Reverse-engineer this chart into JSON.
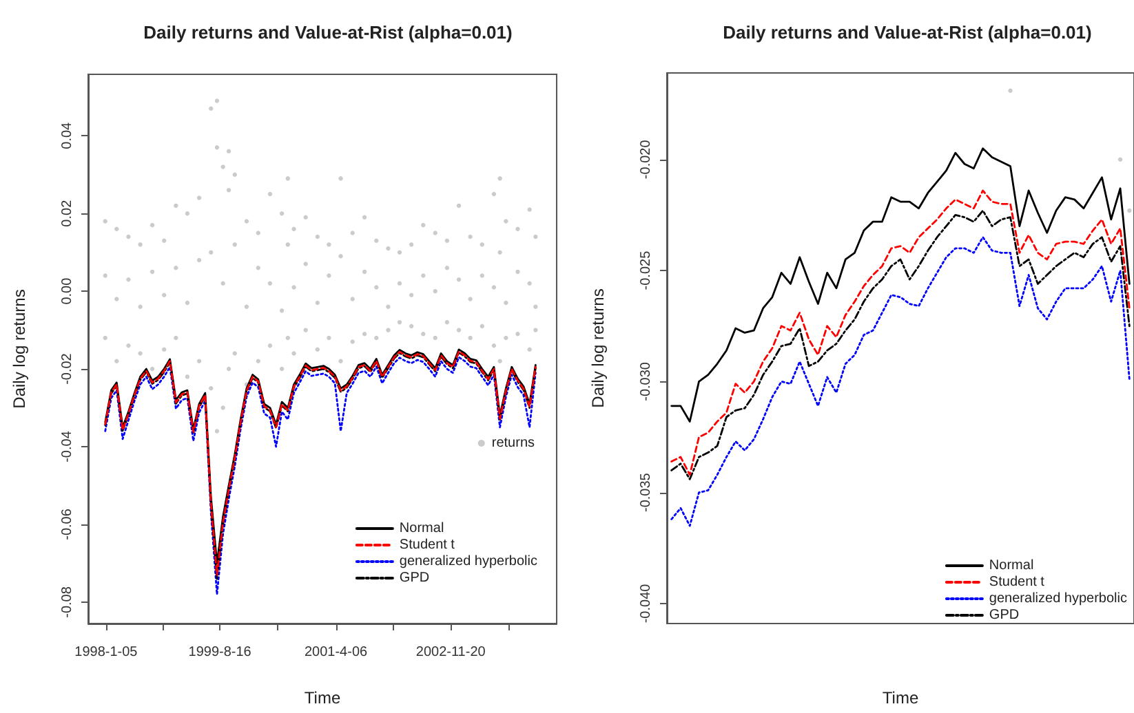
{
  "chart_data": [
    {
      "type": "line",
      "title": "Daily returns and Value-at-Rist (alpha=0.01)",
      "xlabel": "Time",
      "ylabel": "Daily log returns",
      "legend": "bottom right",
      "grid": false,
      "xlim": [
        "1997-10-05",
        "2004-05-20"
      ],
      "xticks": [
        {
          "value": "1998-01-05",
          "label": "1998-1-05"
        },
        {
          "value": "1998-10-26",
          "label": null
        },
        {
          "value": "1999-08-16",
          "label": "1999-8-16"
        },
        {
          "value": "2000-06-11",
          "label": null
        },
        {
          "value": "2001-04-06",
          "label": "2001-4-06"
        },
        {
          "value": "2002-01-28",
          "label": null
        },
        {
          "value": "2002-11-20",
          "label": "2002-11-20"
        },
        {
          "value": "2003-09-13",
          "label": null
        }
      ],
      "ylim": [
        -0.0855,
        0.0558
      ],
      "yticks": [
        {
          "value": -0.08,
          "label": "-0.08"
        },
        {
          "value": -0.06,
          "label": "-0.06"
        },
        {
          "value": -0.04,
          "label": "-0.04"
        },
        {
          "value": -0.02,
          "label": "-0.02"
        },
        {
          "value": 0,
          "label": "0.00"
        },
        {
          "value": 0.02,
          "label": "0.02"
        },
        {
          "value": 0.04,
          "label": "0.04"
        }
      ],
      "x": [
        "1998-01",
        "1998-02",
        "1998-03",
        "1998-04",
        "1998-05",
        "1998-06",
        "1998-07",
        "1998-08",
        "1998-09",
        "1998-10",
        "1998-11",
        "1998-12",
        "1999-01",
        "1999-02",
        "1999-03",
        "1999-04",
        "1999-05",
        "1999-06",
        "1999-07",
        "1999-08",
        "1999-09",
        "1999-10",
        "1999-11",
        "1999-12",
        "2000-01",
        "2000-02",
        "2000-03",
        "2000-04",
        "2000-05",
        "2000-06",
        "2000-07",
        "2000-08",
        "2000-09",
        "2000-10",
        "2000-11",
        "2000-12",
        "2001-01",
        "2001-02",
        "2001-03",
        "2001-04",
        "2001-05",
        "2001-06",
        "2001-07",
        "2001-08",
        "2001-09",
        "2001-10",
        "2001-11",
        "2001-12",
        "2002-01",
        "2002-02",
        "2002-03",
        "2002-04",
        "2002-05",
        "2002-06",
        "2002-07",
        "2002-08",
        "2002-09",
        "2002-10",
        "2002-11",
        "2002-12",
        "2003-01",
        "2003-02",
        "2003-03",
        "2003-04",
        "2003-05",
        "2003-06",
        "2003-07",
        "2003-08",
        "2003-09",
        "2003-10",
        "2003-11",
        "2003-12",
        "2004-01",
        "2004-02"
      ],
      "series": [
        {
          "name": "returns",
          "type": "scatter",
          "marker": "circle",
          "color": "#bebebe",
          "x": [
            "1998-01",
            "1998-01",
            "1998-01",
            "1998-03",
            "1998-03",
            "1998-03",
            "1998-05",
            "1998-05",
            "1998-05",
            "1998-07",
            "1998-07",
            "1998-07",
            "1998-09",
            "1998-09",
            "1998-09",
            "1998-11",
            "1998-11",
            "1998-11",
            "1999-01",
            "1999-01",
            "1999-01",
            "1999-03",
            "1999-03",
            "1999-03",
            "1999-05",
            "1999-05",
            "1999-05",
            "1999-07",
            "1999-07",
            "1999-07",
            "1999-08",
            "1999-08",
            "1999-08",
            "1999-09",
            "1999-09",
            "1999-09",
            "1999-10",
            "1999-10",
            "1999-10",
            "1999-11",
            "1999-11",
            "1999-11",
            "2000-01",
            "2000-01",
            "2000-01",
            "2000-03",
            "2000-03",
            "2000-03",
            "2000-05",
            "2000-05",
            "2000-05",
            "2000-07",
            "2000-07",
            "2000-07",
            "2000-08",
            "2000-08",
            "2000-08",
            "2000-09",
            "2000-09",
            "2000-09",
            "2000-11",
            "2000-11",
            "2000-11",
            "2001-01",
            "2001-01",
            "2001-01",
            "2001-03",
            "2001-03",
            "2001-03",
            "2001-05",
            "2001-05",
            "2001-05",
            "2001-07",
            "2001-07",
            "2001-07",
            "2001-09",
            "2001-09",
            "2001-09",
            "2001-11",
            "2001-11",
            "2001-11",
            "2002-01",
            "2002-01",
            "2002-01",
            "2002-03",
            "2002-03",
            "2002-03",
            "2002-05",
            "2002-05",
            "2002-05",
            "2002-07",
            "2002-07",
            "2002-07",
            "2002-09",
            "2002-09",
            "2002-09",
            "2002-11",
            "2002-11",
            "2002-11",
            "2003-01",
            "2003-01",
            "2003-01",
            "2003-03",
            "2003-03",
            "2003-03",
            "2003-05",
            "2003-05",
            "2003-05",
            "2003-07",
            "2003-07",
            "2003-07",
            "2003-08",
            "2003-08",
            "2003-08",
            "2003-09",
            "2003-09",
            "2003-09",
            "2003-11",
            "2003-11",
            "2003-11",
            "2004-01",
            "2004-01",
            "2004-01",
            "2004-02",
            "2004-02",
            "2004-02"
          ],
          "values": [
            0.018,
            0.004,
            -0.012,
            0.016,
            -0.002,
            -0.018,
            0.014,
            0.003,
            -0.014,
            0.012,
            -0.004,
            -0.016,
            0.017,
            0.005,
            -0.02,
            0.013,
            -0.001,
            -0.015,
            0.022,
            0.006,
            -0.012,
            0.02,
            -0.003,
            -0.022,
            0.024,
            0.008,
            -0.018,
            0.047,
            0.01,
            -0.025,
            0.049,
            0.037,
            -0.036,
            0.032,
            0.002,
            -0.03,
            0.036,
            0.026,
            -0.02,
            0.03,
            0.012,
            -0.016,
            0.018,
            -0.004,
            -0.024,
            0.015,
            0.006,
            -0.018,
            0.025,
            0.002,
            -0.014,
            0.02,
            -0.005,
            -0.02,
            0.029,
            0.012,
            -0.012,
            0.016,
            0.001,
            -0.016,
            0.019,
            0.007,
            -0.01,
            0.014,
            -0.003,
            -0.015,
            0.012,
            0.004,
            -0.012,
            0.029,
            0.009,
            -0.018,
            0.015,
            -0.002,
            -0.013,
            0.019,
            0.005,
            -0.011,
            0.013,
            0.001,
            -0.012,
            0.011,
            -0.004,
            -0.01,
            0.01,
            0.002,
            -0.008,
            0.012,
            -0.001,
            -0.009,
            0.017,
            0.004,
            -0.011,
            0.015,
            0.0,
            -0.012,
            0.013,
            0.006,
            -0.008,
            0.022,
            0.003,
            -0.01,
            0.014,
            -0.002,
            -0.012,
            0.012,
            0.004,
            -0.009,
            0.025,
            0.001,
            -0.014,
            0.029,
            0.01,
            -0.018,
            0.018,
            -0.003,
            -0.012,
            0.016,
            0.005,
            -0.011,
            0.021,
            0.002,
            -0.015,
            0.014,
            -0.004,
            -0.01
          ]
        },
        {
          "name": "Normal",
          "color": "#000000",
          "marker": "none",
          "line_style": "solid",
          "values": [
            -0.0337,
            -0.0255,
            -0.0235,
            -0.035,
            -0.031,
            -0.0262,
            -0.022,
            -0.02,
            -0.023,
            -0.022,
            -0.02,
            -0.0175,
            -0.028,
            -0.026,
            -0.0255,
            -0.0355,
            -0.029,
            -0.0262,
            -0.053,
            -0.07,
            -0.058,
            -0.05,
            -0.042,
            -0.033,
            -0.025,
            -0.0215,
            -0.0227,
            -0.029,
            -0.03,
            -0.0343,
            -0.0285,
            -0.03,
            -0.024,
            -0.0215,
            -0.0186,
            -0.0198,
            -0.0195,
            -0.0192,
            -0.02,
            -0.0215,
            -0.025,
            -0.024,
            -0.0218,
            -0.019,
            -0.0185,
            -0.02,
            -0.0174,
            -0.0215,
            -0.019,
            -0.0165,
            -0.0151,
            -0.016,
            -0.0165,
            -0.0157,
            -0.0162,
            -0.018,
            -0.0198,
            -0.016,
            -0.018,
            -0.019,
            -0.015,
            -0.016,
            -0.0174,
            -0.0178,
            -0.02,
            -0.022,
            -0.0195,
            -0.032,
            -0.025,
            -0.0195,
            -0.0225,
            -0.0245,
            -0.029,
            -0.019
          ]
        },
        {
          "name": "Student t",
          "color": "#ff0000",
          "marker": "none",
          "line_style": "dashed",
          "values": [
            -0.0342,
            -0.026,
            -0.024,
            -0.0357,
            -0.0315,
            -0.0267,
            -0.0225,
            -0.0205,
            -0.0235,
            -0.0225,
            -0.0205,
            -0.018,
            -0.0286,
            -0.0265,
            -0.026,
            -0.0362,
            -0.0295,
            -0.0267,
            -0.0545,
            -0.073,
            -0.0595,
            -0.051,
            -0.0428,
            -0.0337,
            -0.0256,
            -0.022,
            -0.0232,
            -0.0296,
            -0.0306,
            -0.035,
            -0.0291,
            -0.0306,
            -0.0245,
            -0.022,
            -0.0191,
            -0.0203,
            -0.02,
            -0.0197,
            -0.0205,
            -0.022,
            -0.0256,
            -0.0245,
            -0.0223,
            -0.0195,
            -0.019,
            -0.0205,
            -0.0179,
            -0.022,
            -0.0195,
            -0.017,
            -0.0156,
            -0.0165,
            -0.017,
            -0.0162,
            -0.0167,
            -0.0185,
            -0.0203,
            -0.0165,
            -0.0185,
            -0.0195,
            -0.0155,
            -0.0165,
            -0.0179,
            -0.0183,
            -0.0205,
            -0.0226,
            -0.02,
            -0.0328,
            -0.0256,
            -0.02,
            -0.023,
            -0.0251,
            -0.0297,
            -0.0195
          ]
        },
        {
          "name": "generalized hyperbolic",
          "color": "#0000ff",
          "marker": "none",
          "line_style": "dotted",
          "values": [
            -0.036,
            -0.0275,
            -0.0255,
            -0.038,
            -0.0332,
            -0.0282,
            -0.024,
            -0.022,
            -0.0252,
            -0.024,
            -0.022,
            -0.0195,
            -0.0302,
            -0.028,
            -0.0275,
            -0.0385,
            -0.0312,
            -0.0282,
            -0.057,
            -0.078,
            -0.0625,
            -0.0535,
            -0.045,
            -0.0355,
            -0.0272,
            -0.0235,
            -0.0247,
            -0.0315,
            -0.0325,
            -0.04,
            -0.031,
            -0.033,
            -0.0262,
            -0.0235,
            -0.0206,
            -0.0218,
            -0.0215,
            -0.0212,
            -0.022,
            -0.0237,
            -0.036,
            -0.0262,
            -0.0238,
            -0.021,
            -0.0205,
            -0.022,
            -0.0194,
            -0.0237,
            -0.021,
            -0.0185,
            -0.0171,
            -0.018,
            -0.0185,
            -0.0177,
            -0.0182,
            -0.02,
            -0.022,
            -0.018,
            -0.02,
            -0.021,
            -0.017,
            -0.018,
            -0.0194,
            -0.0198,
            -0.022,
            -0.0242,
            -0.0215,
            -0.035,
            -0.0272,
            -0.0215,
            -0.0247,
            -0.0267,
            -0.035,
            -0.021
          ]
        },
        {
          "name": "GPD",
          "color": "#000000",
          "marker": "none",
          "line_style": "dashdot",
          "values": [
            -0.0345,
            -0.0263,
            -0.0243,
            -0.0359,
            -0.0318,
            -0.027,
            -0.0228,
            -0.0208,
            -0.0238,
            -0.0228,
            -0.0208,
            -0.0183,
            -0.0289,
            -0.0268,
            -0.0263,
            -0.0364,
            -0.0298,
            -0.027,
            -0.055,
            -0.074,
            -0.06,
            -0.0515,
            -0.0432,
            -0.034,
            -0.0259,
            -0.0223,
            -0.0235,
            -0.0299,
            -0.0309,
            -0.0352,
            -0.0294,
            -0.0309,
            -0.0248,
            -0.0223,
            -0.0194,
            -0.0206,
            -0.0203,
            -0.02,
            -0.0208,
            -0.0223,
            -0.0259,
            -0.0248,
            -0.0226,
            -0.0198,
            -0.0193,
            -0.0208,
            -0.0182,
            -0.0223,
            -0.0198,
            -0.0173,
            -0.0159,
            -0.0168,
            -0.0173,
            -0.0165,
            -0.017,
            -0.0188,
            -0.0206,
            -0.0168,
            -0.0188,
            -0.0198,
            -0.0158,
            -0.0168,
            -0.0182,
            -0.0186,
            -0.0208,
            -0.0229,
            -0.0203,
            -0.033,
            -0.0259,
            -0.0203,
            -0.0233,
            -0.0254,
            -0.03,
            -0.0198
          ]
        }
      ]
    },
    {
      "type": "line",
      "title": "Daily returns and Value-at-Rist (alpha=0.01)",
      "xlabel": "Time",
      "ylabel": "Daily log returns",
      "legend": "bottom right",
      "grid": false,
      "tick_labels": "y",
      "categories": [
        null,
        null,
        null,
        null,
        null,
        null,
        null,
        null,
        null,
        null,
        null,
        null,
        null,
        null,
        null,
        null,
        null,
        null,
        null,
        null,
        null,
        null,
        null,
        null,
        null,
        null,
        null,
        null,
        null,
        null,
        null,
        null,
        null,
        null,
        null,
        null,
        null,
        null,
        null,
        null,
        null,
        null,
        null,
        null,
        null,
        null,
        null,
        null,
        null,
        null,
        null
      ],
      "ylim": [
        -0.0409,
        -0.0161
      ],
      "yticks": [
        {
          "value": -0.04,
          "label": "-0.040"
        },
        {
          "value": -0.035,
          "label": "-0.035"
        },
        {
          "value": -0.03,
          "label": "-0.030"
        },
        {
          "value": -0.025,
          "label": "-0.025"
        },
        {
          "value": -0.02,
          "label": "-0.020"
        }
      ],
      "series": [
        {
          "type": "scatter",
          "marker": "circle",
          "color": "#bebebe",
          "values": [
            null,
            null,
            null,
            null,
            null,
            null,
            null,
            null,
            null,
            null,
            null,
            null,
            null,
            null,
            null,
            null,
            null,
            null,
            null,
            null,
            null,
            null,
            null,
            null,
            null,
            null,
            null,
            null,
            null,
            null,
            null,
            null,
            null,
            null,
            null,
            null,
            null,
            -0.0169,
            null,
            null,
            null,
            null,
            null,
            null,
            null,
            null,
            null,
            null,
            null,
            -0.02,
            -0.0223
          ]
        },
        {
          "name": "Normal",
          "color": "#000000",
          "marker": "none",
          "line_style": "solid",
          "values": [
            -0.0311,
            -0.0311,
            -0.0318,
            -0.03,
            -0.0297,
            -0.0292,
            -0.0286,
            -0.0276,
            -0.0278,
            -0.0277,
            -0.0267,
            -0.0262,
            -0.0251,
            -0.0256,
            -0.0244,
            -0.0255,
            -0.0265,
            -0.0251,
            -0.0258,
            -0.0245,
            -0.0242,
            -0.0232,
            -0.0228,
            -0.0228,
            -0.0217,
            -0.0219,
            -0.0219,
            -0.0222,
            -0.0215,
            -0.021,
            -0.0205,
            -0.0197,
            -0.0202,
            -0.0204,
            -0.0195,
            -0.0199,
            -0.0201,
            -0.0203,
            -0.023,
            -0.0214,
            -0.0224,
            -0.0233,
            -0.0223,
            -0.0217,
            -0.0218,
            -0.0222,
            -0.0215,
            -0.0208,
            -0.0227,
            -0.0213,
            -0.0256
          ]
        },
        {
          "name": "Student t",
          "color": "#ff0000",
          "marker": "none",
          "line_style": "dashed",
          "values": [
            -0.0336,
            -0.0334,
            -0.0342,
            -0.0325,
            -0.0323,
            -0.0318,
            -0.0314,
            -0.0301,
            -0.0305,
            -0.03,
            -0.0291,
            -0.0285,
            -0.0275,
            -0.0277,
            -0.0269,
            -0.0281,
            -0.0288,
            -0.0275,
            -0.028,
            -0.027,
            -0.0264,
            -0.0257,
            -0.0252,
            -0.0248,
            -0.024,
            -0.0239,
            -0.0242,
            -0.0235,
            -0.0231,
            -0.0227,
            -0.0222,
            -0.0218,
            -0.022,
            -0.0222,
            -0.0214,
            -0.0219,
            -0.022,
            -0.022,
            -0.0242,
            -0.0234,
            -0.0242,
            -0.0245,
            -0.0238,
            -0.0237,
            -0.0237,
            -0.0238,
            -0.0232,
            -0.0227,
            -0.0238,
            -0.0231,
            -0.0267
          ]
        },
        {
          "name": "generalized hyperbolic",
          "color": "#0000ff",
          "marker": "none",
          "line_style": "dotted",
          "values": [
            -0.0362,
            -0.0357,
            -0.0365,
            -0.035,
            -0.0349,
            -0.0342,
            -0.0334,
            -0.0327,
            -0.0331,
            -0.0326,
            -0.0317,
            -0.0307,
            -0.03,
            -0.0301,
            -0.0291,
            -0.0301,
            -0.0311,
            -0.0298,
            -0.0305,
            -0.0292,
            -0.0288,
            -0.0279,
            -0.0277,
            -0.0269,
            -0.0261,
            -0.0262,
            -0.0265,
            -0.0266,
            -0.0258,
            -0.0251,
            -0.0244,
            -0.024,
            -0.024,
            -0.0242,
            -0.0235,
            -0.0241,
            -0.0242,
            -0.0242,
            -0.0266,
            -0.0252,
            -0.0267,
            -0.0272,
            -0.0264,
            -0.0258,
            -0.0258,
            -0.0258,
            -0.0254,
            -0.0248,
            -0.0264,
            -0.025,
            -0.0299
          ]
        },
        {
          "name": "GPD",
          "color": "#000000",
          "marker": "none",
          "line_style": "dashdot",
          "values": [
            -0.034,
            -0.0337,
            -0.0344,
            -0.0334,
            -0.0332,
            -0.0329,
            -0.0316,
            -0.0313,
            -0.0312,
            -0.0306,
            -0.0297,
            -0.0291,
            -0.0284,
            -0.0283,
            -0.0276,
            -0.0293,
            -0.0291,
            -0.0286,
            -0.0283,
            -0.0277,
            -0.0272,
            -0.0264,
            -0.0258,
            -0.0254,
            -0.0248,
            -0.0245,
            -0.0254,
            -0.0248,
            -0.0241,
            -0.0235,
            -0.023,
            -0.0225,
            -0.0226,
            -0.0228,
            -0.0223,
            -0.023,
            -0.0227,
            -0.0226,
            -0.0248,
            -0.0245,
            -0.0256,
            -0.0252,
            -0.0248,
            -0.0245,
            -0.0242,
            -0.0244,
            -0.0238,
            -0.0235,
            -0.0246,
            -0.0239,
            -0.0275
          ]
        }
      ]
    }
  ]
}
